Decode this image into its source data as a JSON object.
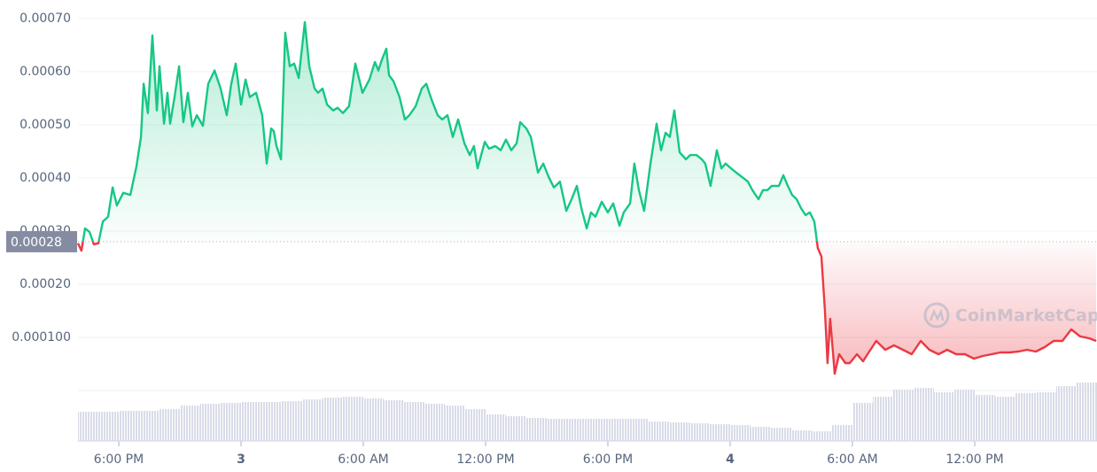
{
  "chart_data": {
    "type": "line",
    "watermark": "CoinMarketCap",
    "color_up": "#16c784",
    "color_down": "#ea3943",
    "volume_color": "#d9dce8",
    "reference": {
      "value": 0.00028,
      "label": "0.00028"
    },
    "xlim": [
      -8,
      42
    ],
    "ylim": [
      0,
      0.000718
    ],
    "grid": true,
    "xticks": [
      {
        "value": -6,
        "label": "6:00 PM"
      },
      {
        "value": 0,
        "label": "3"
      },
      {
        "value": 6,
        "label": "6:00 AM"
      },
      {
        "value": 12,
        "label": "12:00 PM"
      },
      {
        "value": 18,
        "label": "6:00 PM"
      },
      {
        "value": 24,
        "label": "4"
      },
      {
        "value": 30,
        "label": "6:00 AM"
      },
      {
        "value": 36,
        "label": "12:00 PM"
      }
    ],
    "yticks": [
      {
        "value": 0.0007,
        "label": "0.00070"
      },
      {
        "value": 0.0006,
        "label": "0.00060"
      },
      {
        "value": 0.0005,
        "label": "0.00050"
      },
      {
        "value": 0.0004,
        "label": "0.00040"
      },
      {
        "value": 0.0003,
        "label": "0.00030"
      },
      {
        "value": 0.0002,
        "label": "0.00020"
      },
      {
        "value": 0.0001,
        "label": "0.000100"
      }
    ],
    "x": [
      -8,
      -7.83,
      -7.65,
      -7.43,
      -7.22,
      -7,
      -6.78,
      -6.52,
      -6.3,
      -6.09,
      -5.78,
      -5.43,
      -5.13,
      -4.91,
      -4.78,
      -4.57,
      -4.35,
      -4.13,
      -4,
      -3.78,
      -3.61,
      -3.48,
      -3.26,
      -3.04,
      -2.83,
      -2.61,
      -2.39,
      -2.17,
      -1.87,
      -1.61,
      -1.3,
      -1,
      -0.7,
      -0.48,
      -0.26,
      0,
      0.22,
      0.43,
      0.74,
      1.04,
      1.26,
      1.48,
      1.61,
      1.74,
      1.96,
      2.17,
      2.39,
      2.61,
      2.83,
      3.13,
      3.35,
      3.61,
      3.78,
      4,
      4.22,
      4.52,
      4.74,
      5,
      5.3,
      5.61,
      5.96,
      6.3,
      6.57,
      6.74,
      6.91,
      7.13,
      7.26,
      7.48,
      7.78,
      8.04,
      8.26,
      8.57,
      8.87,
      9.09,
      9.35,
      9.65,
      9.87,
      10.13,
      10.39,
      10.65,
      10.96,
      11.22,
      11.43,
      11.61,
      11.96,
      12.17,
      12.48,
      12.74,
      13,
      13.26,
      13.52,
      13.7,
      14,
      14.22,
      14.57,
      14.83,
      15.09,
      15.35,
      15.65,
      15.96,
      16.22,
      16.48,
      16.7,
      16.96,
      17.17,
      17.39,
      17.7,
      18,
      18.26,
      18.57,
      18.78,
      19.09,
      19.3,
      19.52,
      19.78,
      20.09,
      20.39,
      20.61,
      20.83,
      21.04,
      21.26,
      21.52,
      21.83,
      22.04,
      22.35,
      22.61,
      22.78,
      23.04,
      23.35,
      23.57,
      23.78,
      24.04,
      24.3,
      24.57,
      24.87,
      25.09,
      25.39,
      25.61,
      25.83,
      26.04,
      26.39,
      26.61,
      26.83,
      27.04,
      27.26,
      27.48,
      27.7,
      27.91,
      28.13,
      28.3,
      28.48,
      28.65,
      28.78,
      28.91,
      29.13,
      29.35,
      29.65,
      29.87,
      30.22,
      30.52,
      30.74,
      31.17,
      31.61,
      32.04,
      32.48,
      32.91,
      33.35,
      33.78,
      34.22,
      34.65,
      35.09,
      35.52,
      35.96,
      36.39,
      36.83,
      37.26,
      37.7,
      38.13,
      38.57,
      39,
      39.43,
      39.87,
      40.3,
      40.74,
      41.17,
      41.61,
      41.96
    ],
    "values": [
      0.000277,
      0.000263,
      0.000305,
      0.000298,
      0.000275,
      0.000277,
      0.000318,
      0.000327,
      0.000382,
      0.000348,
      0.000372,
      0.000368,
      0.000422,
      0.000477,
      0.000577,
      0.000522,
      0.000668,
      0.000527,
      0.00061,
      0.000502,
      0.00056,
      0.000502,
      0.000552,
      0.00061,
      0.000505,
      0.00056,
      0.000497,
      0.000518,
      0.000498,
      0.000577,
      0.000602,
      0.000568,
      0.000518,
      0.000577,
      0.000615,
      0.000538,
      0.000585,
      0.000552,
      0.00056,
      0.000518,
      0.000427,
      0.000493,
      0.000488,
      0.00046,
      0.000435,
      0.000673,
      0.00061,
      0.000615,
      0.000588,
      0.000693,
      0.00061,
      0.000568,
      0.00056,
      0.000568,
      0.000538,
      0.000527,
      0.000532,
      0.000522,
      0.000535,
      0.000615,
      0.00056,
      0.000585,
      0.000618,
      0.000602,
      0.000622,
      0.000643,
      0.000593,
      0.000582,
      0.000552,
      0.00051,
      0.000518,
      0.000535,
      0.000568,
      0.000577,
      0.000547,
      0.000518,
      0.00051,
      0.000518,
      0.000477,
      0.00051,
      0.000465,
      0.000443,
      0.00046,
      0.000418,
      0.000468,
      0.000455,
      0.00046,
      0.000452,
      0.000472,
      0.000452,
      0.000465,
      0.000505,
      0.000493,
      0.000477,
      0.00041,
      0.000427,
      0.000402,
      0.000382,
      0.000393,
      0.000338,
      0.00036,
      0.000385,
      0.000343,
      0.000305,
      0.000335,
      0.000327,
      0.000355,
      0.000335,
      0.000352,
      0.00031,
      0.000335,
      0.000352,
      0.000427,
      0.000377,
      0.000338,
      0.000427,
      0.000502,
      0.000452,
      0.000485,
      0.000477,
      0.000527,
      0.000448,
      0.000435,
      0.000443,
      0.000443,
      0.000435,
      0.000427,
      0.000385,
      0.000452,
      0.000418,
      0.000427,
      0.000418,
      0.00041,
      0.000402,
      0.000393,
      0.000377,
      0.00036,
      0.000377,
      0.000377,
      0.000385,
      0.000385,
      0.000405,
      0.000385,
      0.000368,
      0.00036,
      0.000343,
      0.00033,
      0.000335,
      0.000318,
      0.000268,
      0.000252,
      0.000152,
      5.17e-05,
      0.000135,
      3.17e-05,
      6.83e-05,
      5.17e-05,
      5.17e-05,
      6.83e-05,
      5.5e-05,
      6.83e-05,
      9.33e-05,
      7.67e-05,
      8.5e-05,
      7.67e-05,
      6.83e-05,
      9.33e-05,
      7.67e-05,
      6.83e-05,
      7.67e-05,
      6.83e-05,
      6.83e-05,
      6e-05,
      6.5e-05,
      6.83e-05,
      7.17e-05,
      7.17e-05,
      7.33e-05,
      7.67e-05,
      7.33e-05,
      8.17e-05,
      9.33e-05,
      9.33e-05,
      0.000115,
      0.000102,
      9.83e-05,
      9.33e-05
    ],
    "volume": {
      "x": [
        -8,
        -7,
        -6,
        -5,
        -4,
        -3,
        -2,
        -1,
        0,
        1,
        2,
        3,
        4,
        5,
        6,
        7,
        8,
        9,
        10,
        11,
        12,
        13,
        14,
        15,
        16,
        17,
        18,
        19,
        20,
        21,
        22,
        23,
        24,
        25,
        26,
        27,
        28,
        29,
        30,
        31,
        32,
        33,
        34,
        35,
        36,
        37,
        38,
        39,
        40,
        41
      ],
      "values": [
        33,
        33,
        34,
        34,
        36,
        40,
        42,
        43,
        44,
        44,
        45,
        47,
        49,
        50,
        48,
        46,
        44,
        42,
        40,
        36,
        30,
        28,
        26,
        25,
        25,
        25,
        25,
        25,
        22,
        21,
        20,
        19,
        18,
        16,
        15,
        12,
        11,
        18,
        43,
        50,
        58,
        60,
        55,
        58,
        52,
        50,
        54,
        55,
        62,
        66
      ]
    }
  }
}
